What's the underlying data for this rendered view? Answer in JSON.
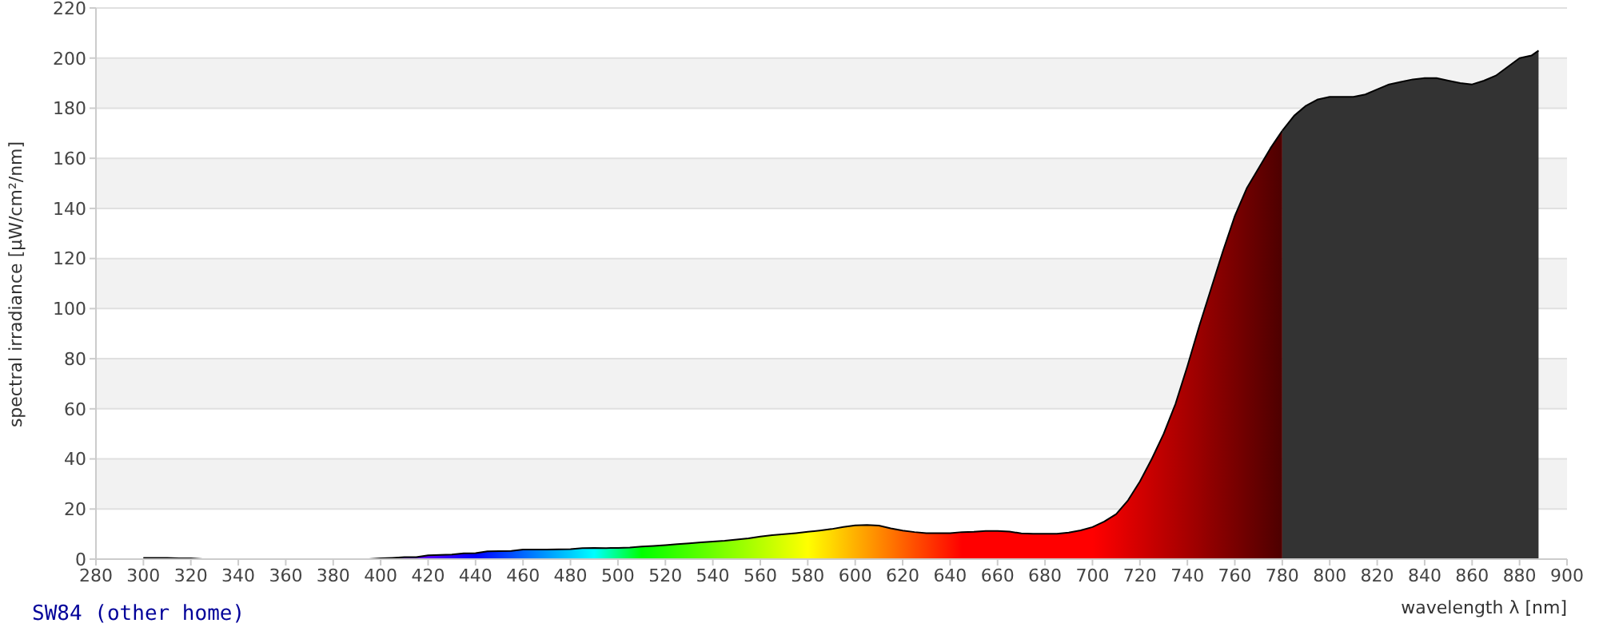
{
  "chart_data": {
    "type": "area",
    "title": "SW84 (other home)",
    "xlabel": "wavelength λ [nm]",
    "ylabel": "spectral irradiance [µW/cm²/nm]",
    "xlim": [
      280,
      900
    ],
    "xticks": [
      280,
      300,
      320,
      340,
      360,
      380,
      400,
      420,
      440,
      460,
      480,
      500,
      520,
      540,
      560,
      580,
      600,
      620,
      640,
      660,
      680,
      700,
      720,
      740,
      760,
      780,
      800,
      820,
      840,
      860,
      880,
      900
    ],
    "ylim": [
      0,
      220
    ],
    "yticks": [
      0,
      20,
      40,
      60,
      80,
      100,
      120,
      140,
      160,
      180,
      200,
      220
    ],
    "grid": "y",
    "series": [
      {
        "x": [
          300,
          305,
          310,
          315,
          320,
          325,
          330,
          335,
          340,
          345,
          350,
          355,
          360,
          365,
          370,
          375,
          380,
          385,
          390,
          395,
          400,
          405,
          410,
          415,
          420,
          425,
          430,
          435,
          440,
          445,
          450,
          455,
          460,
          465,
          470,
          475,
          480,
          485,
          490,
          495,
          500,
          505,
          510,
          515,
          520,
          525,
          530,
          535,
          540,
          545,
          550,
          555,
          560,
          565,
          570,
          575,
          580,
          585,
          590,
          595,
          600,
          605,
          610,
          615,
          620,
          625,
          630,
          635,
          640,
          645,
          650,
          655,
          660,
          665,
          670,
          675,
          680,
          685,
          690,
          695,
          700,
          705,
          710,
          715,
          720,
          725,
          730,
          735,
          740,
          745,
          750,
          755,
          760,
          765,
          770,
          775,
          780
        ],
        "values": [
          0.5,
          0.5,
          0.5,
          0.3,
          0.3,
          0,
          0,
          0,
          0,
          0,
          0,
          0,
          0,
          0,
          0,
          0,
          0,
          0,
          0,
          0,
          0.3,
          0.5,
          0.8,
          0.8,
          1.5,
          1.7,
          1.8,
          2.3,
          2.4,
          3.1,
          3.2,
          3.3,
          3.8,
          3.8,
          3.8,
          3.9,
          4,
          4.4,
          4.5,
          4.4,
          4.5,
          4.6,
          5,
          5.3,
          5.6,
          6,
          6.3,
          6.7,
          7,
          7.3,
          7.8,
          8.3,
          9,
          9.6,
          10,
          10.4,
          10.9,
          11.4,
          12,
          12.8,
          13.5,
          13.6,
          13.4,
          12.3,
          11.4,
          10.8,
          10.4,
          10.4,
          10.4,
          10.8,
          10.9,
          11.2,
          11.2,
          11,
          10.3,
          10.1,
          10.1,
          10.1,
          10.6,
          11.5,
          12.8,
          15,
          18,
          23.5,
          31,
          40,
          50,
          62,
          77,
          93,
          108,
          123,
          137,
          148,
          156,
          164,
          171
        ],
        "colors": [
          "#000000",
          "#000000",
          "#000000",
          "#000000",
          "#000000",
          "#000000",
          "#000000",
          "#000000",
          "#000000",
          "#000000",
          "#000000",
          "#000000",
          "#000000",
          "#000000",
          "#000000",
          "#000000",
          "#000000",
          "#000000",
          "#000000",
          "#000000",
          "#6e00a6",
          "#6d00bc",
          "#6900d2",
          "#6100e8",
          "#5500ff",
          "#4000ff",
          "#2a00ff",
          "#1500ff",
          "#0000ff",
          "#001aff",
          "#0033ff",
          "#004dff",
          "#0066ff",
          "#0080ff",
          "#0099ff",
          "#00b3ff",
          "#00ccff",
          "#00e6ff",
          "#00ffff",
          "#00ffbf",
          "#00ff80",
          "#00ff40",
          "#00ff00",
          "#12ff00",
          "#24ff00",
          "#37ff00",
          "#49ff00",
          "#5bff00",
          "#6dff00",
          "#80ff00",
          "#92ff00",
          "#a4ff00",
          "#b6ff00",
          "#c8ff00",
          "#dbff00",
          "#edff00",
          "#ffff00",
          "#ffeb00",
          "#ffd800",
          "#ffc400",
          "#ffb000",
          "#ff9d00",
          "#ff8900",
          "#ff7600",
          "#ff6200",
          "#ff4e00",
          "#ff3b00",
          "#ff2700",
          "#ff1400",
          "#ff0000",
          "#ff0000",
          "#ff0000",
          "#ff0000",
          "#ff0000",
          "#ff0000",
          "#ff0000",
          "#ff0000",
          "#ff0000",
          "#ff0000",
          "#ff0000",
          "#ff0000",
          "#f40000",
          "#e90000",
          "#dd0000",
          "#d20000",
          "#c70000",
          "#bc0000",
          "#b10000",
          "#a60000",
          "#9b0000",
          "#8f0000",
          "#840000",
          "#790000",
          "#6e0000",
          "#630000",
          "#580000",
          "#4d0000"
        ]
      },
      {
        "x": [
          780,
          785,
          790,
          795,
          800,
          805,
          810,
          815,
          820,
          825,
          830,
          835,
          840,
          845,
          850,
          855,
          860,
          865,
          870,
          875,
          880,
          885,
          888
        ],
        "values": [
          171,
          177,
          181,
          183.5,
          184.5,
          184.5,
          184.5,
          185.5,
          187.5,
          189.5,
          190.5,
          191.5,
          192,
          192,
          191,
          190,
          189.5,
          191,
          193,
          196.5,
          200,
          201,
          203
        ],
        "color": "#333333"
      }
    ]
  }
}
